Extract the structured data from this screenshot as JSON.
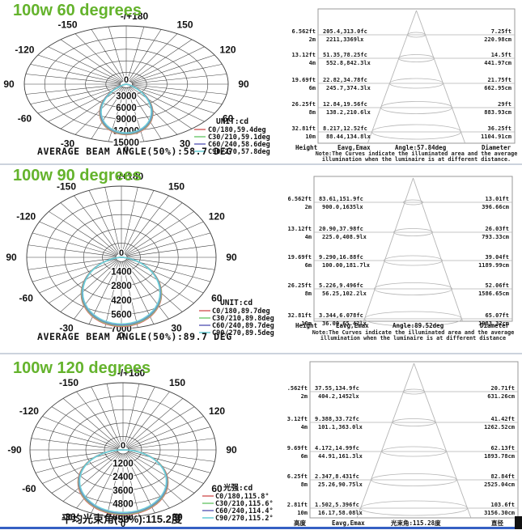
{
  "theme": {
    "title_color": "#64b32c",
    "bottom_bar_color": "#3560c4",
    "grid_color": "#3d3d3d",
    "cone_line_color": "#b5b5b5"
  },
  "sections": [
    {
      "title": "100w 60 degrees",
      "polar_index": 0,
      "table_index": 1
    },
    {
      "title": "100w 90 degrees",
      "polar_index": 2,
      "table_index": 3
    },
    {
      "title": "100w 120 degrees",
      "polar_index": 4,
      "table_index": 5
    }
  ],
  "chart_data": [
    {
      "type": "line",
      "variant": "polar-intensity",
      "title": "100w 60 degrees",
      "unit_label": "UNIT:cd",
      "top_label": "-/+180",
      "bottom_label": "0",
      "center_label": "0",
      "left_angle_labels": [
        "-150",
        "-120",
        "90",
        "-60",
        "-30"
      ],
      "right_angle_labels": [
        "150",
        "120",
        "90",
        "60",
        "30"
      ],
      "radial_ticks": [
        "3000",
        "6000",
        "9000",
        "12000",
        "15000"
      ],
      "scale_max": 15000,
      "peak_cd": 13000,
      "avg_label": "AVERAGE BEAM ANGLE(50%):58.7 DEG",
      "series": [
        {
          "name": "C0/180,59.4deg",
          "beam_deg": 59.4,
          "color": "#d96d6d"
        },
        {
          "name": "C30/210,59.1deg",
          "beam_deg": 59.1,
          "color": "#7fcf7f"
        },
        {
          "name": "C60/240,58.6deg",
          "beam_deg": 58.6,
          "color": "#7070c0"
        },
        {
          "name": "C90/270,57.8deg",
          "beam_deg": 57.8,
          "color": "#6fd1d8"
        }
      ]
    },
    {
      "type": "table",
      "columns": [
        "Height",
        "Eavg,Emax",
        "Angle:57.84deg",
        "Diameter"
      ],
      "rows": [
        [
          "6.562ft",
          "2m",
          "205.4,313.0fc",
          "2211,3369lx",
          "7.25ft",
          "220.98cm"
        ],
        [
          "13.12ft",
          "4m",
          "51.35,78.25fc",
          "552.8,842.3lx",
          "14.5ft",
          "441.97cm"
        ],
        [
          "19.69ft",
          "6m",
          "22.82,34.78fc",
          "245.7,374.3lx",
          "21.75ft",
          "662.95cm"
        ],
        [
          "26.25ft",
          "8m",
          "12.84,19.56fc",
          "138.2,210.6lx",
          "29ft",
          "883.93cm"
        ],
        [
          "32.81ft",
          "10m",
          "8.217,12.52fc",
          "88.44,134.8lx",
          "36.25ft",
          "1104.91cm"
        ]
      ],
      "note": [
        "Note:The Curves indicate the illuminated area and the average",
        "illumination when the luminaire is at different distance."
      ]
    },
    {
      "type": "line",
      "variant": "polar-intensity",
      "title": "100w 90 degrees",
      "unit_label": "UNIT:cd",
      "top_label": "-/+180",
      "bottom_label": "0",
      "center_label": "0",
      "left_angle_labels": [
        "-150",
        "-120",
        "90",
        "-60",
        "-30"
      ],
      "right_angle_labels": [
        "150",
        "120",
        "90",
        "60",
        "30"
      ],
      "radial_ticks": [
        "1400",
        "2800",
        "4200",
        "5600",
        "7000"
      ],
      "scale_max": 7000,
      "peak_cd": 6800,
      "avg_label": "AVERAGE BEAM ANGLE(50%):89.7 DEG",
      "series": [
        {
          "name": "C0/180,89.7deg",
          "beam_deg": 89.7,
          "color": "#d96d6d"
        },
        {
          "name": "C30/210,89.8deg",
          "beam_deg": 89.8,
          "color": "#7fcf7f"
        },
        {
          "name": "C60/240,89.7deg",
          "beam_deg": 89.7,
          "color": "#7070c0"
        },
        {
          "name": "C90/270,89.5deg",
          "beam_deg": 89.5,
          "color": "#6fd1d8"
        }
      ]
    },
    {
      "type": "table",
      "columns": [
        "Height",
        "Eavg,Emax",
        "Angle:89.52deg",
        "Diameter"
      ],
      "rows": [
        [
          "6.562ft",
          "2m",
          "83.61,151.9fc",
          "900.0,1635lx",
          "13.01ft",
          "396.66cm"
        ],
        [
          "13.12ft",
          "4m",
          "20.90,37.98fc",
          "225.0,408.9lx",
          "26.03ft",
          "793.33cm"
        ],
        [
          "19.69ft",
          "6m",
          "9.290,16.88fc",
          "100.00,181.7lx",
          "39.04ft",
          "1189.99cm"
        ],
        [
          "26.25ft",
          "8m",
          "5.226,9.496fc",
          "56.25,102.2lx",
          "52.06ft",
          "1586.65cm"
        ],
        [
          "32.81ft",
          "10m",
          "3.344,6.078fc",
          "36.00,65.42lx",
          "65.07ft",
          "1983.32cm"
        ]
      ],
      "note": [
        "Note:The Curves indicate the illuminated area and the average",
        "illumination when the luminaire is at different distance"
      ]
    },
    {
      "type": "line",
      "variant": "polar-intensity",
      "title": "100w 120 degrees",
      "unit_label": "光强:cd",
      "top_label": "-/+180",
      "bottom_label": "0",
      "center_label": "0",
      "left_angle_labels": [
        "-150",
        "-120",
        "-90",
        "-60",
        "-30"
      ],
      "right_angle_labels": [
        "150",
        "120",
        "90",
        "60",
        "30"
      ],
      "radial_ticks": [
        "1200",
        "2400",
        "3600",
        "4800",
        "6000"
      ],
      "scale_max": 6000,
      "peak_cd": 5800,
      "avg_label": "平均光束角(50%):115.2度",
      "series": [
        {
          "name": "C0/180,115.8°",
          "beam_deg": 115.8,
          "color": "#d96d6d"
        },
        {
          "name": "C30/210,115.6°",
          "beam_deg": 115.6,
          "color": "#7fcf7f"
        },
        {
          "name": "C60/240,114.4°",
          "beam_deg": 114.4,
          "color": "#7070c0"
        },
        {
          "name": "C90/270,115.2°",
          "beam_deg": 115.2,
          "color": "#6fd1d8"
        }
      ]
    },
    {
      "type": "table",
      "columns": [
        "高度",
        "Eavg,Emax",
        "光束角:115.28度",
        "直径"
      ],
      "rows": [
        [
          "6.562ft",
          "2m",
          "37.55,134.9fc",
          "404.2,1452lx",
          "20.71ft",
          "631.26cm"
        ],
        [
          "13.12ft",
          "4m",
          "9.388,33.72fc",
          "101.1,363.0lx",
          "41.42ft",
          "1262.52cm"
        ],
        [
          "19.69ft",
          "6m",
          "4.172,14.99fc",
          "44.91,161.3lx",
          "62.13ft",
          "1893.78cm"
        ],
        [
          "26.25ft",
          "8m",
          "2.347,8.431fc",
          "25.26,90.75lx",
          "82.84ft",
          "2525.04cm"
        ],
        [
          "32.81ft",
          "10m",
          "1.502,5.396fc",
          "16.17,58.08lx",
          "103.6ft",
          "3156.30cm"
        ]
      ],
      "note": null
    }
  ]
}
